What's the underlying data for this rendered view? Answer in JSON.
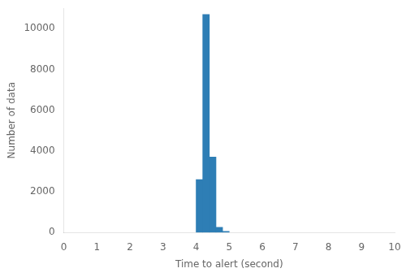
{
  "chart_data": {
    "type": "histogram",
    "bins": [
      4.0,
      4.2,
      4.4,
      4.6,
      4.8,
      5.0
    ],
    "values": [
      2600,
      10700,
      3700,
      250,
      50
    ],
    "color": "#2e7eb5",
    "xlabel": "Time to alert (second)",
    "ylabel": "Number of data",
    "xlim": [
      0,
      10
    ],
    "ylim": [
      0,
      11000
    ],
    "xticks": [
      0,
      1,
      2,
      3,
      4,
      5,
      6,
      7,
      8,
      9,
      10
    ],
    "yticks": [
      0,
      2000,
      4000,
      6000,
      8000,
      10000
    ],
    "grid": false
  }
}
